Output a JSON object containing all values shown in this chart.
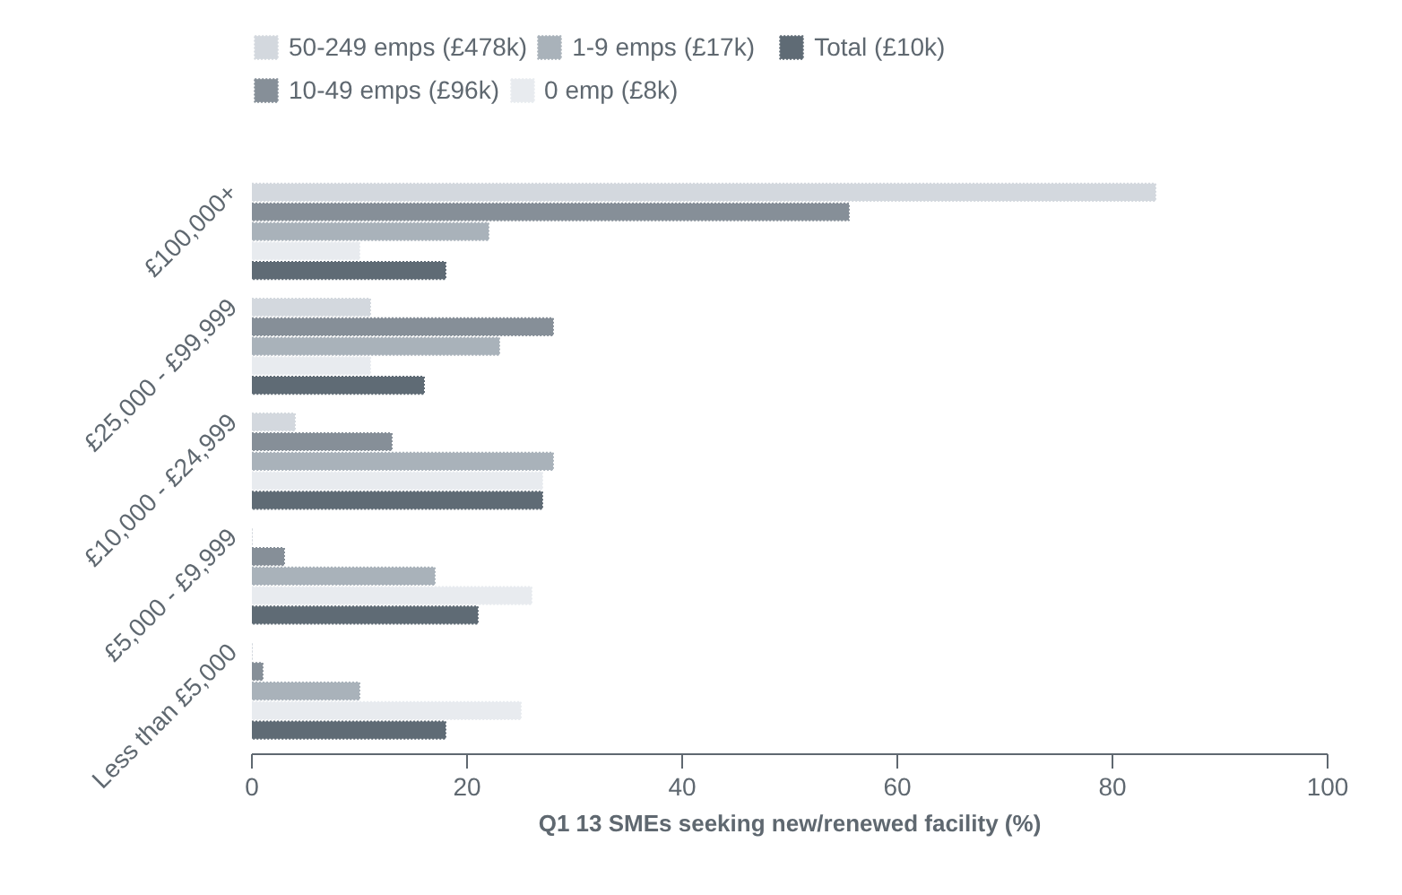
{
  "chart_data": {
    "type": "bar",
    "orientation": "horizontal",
    "xlabel": "Q1 13 SMEs seeking new/renewed facility (%)",
    "categories": [
      "£100,000+",
      "£25,000 - £99,999",
      "£10,000 - £24,999",
      "£5,000 - £9,999",
      "Less than £5,000"
    ],
    "series": [
      {
        "name": "50-249 emps (£478k)",
        "color": "#d3d8de",
        "values": [
          84,
          11,
          4,
          0,
          0
        ]
      },
      {
        "name": "10-49 emps (£96k)",
        "color": "#868f98",
        "values": [
          55.5,
          28,
          13,
          3,
          1
        ]
      },
      {
        "name": "1-9 emps (£17k)",
        "color": "#a9b2ba",
        "values": [
          22,
          23,
          28,
          17,
          10
        ]
      },
      {
        "name": "0 emp (£8k)",
        "color": "#e8ebef",
        "values": [
          10,
          11,
          27,
          26,
          25
        ]
      },
      {
        "name": "Total (£10k)",
        "color": "#5f6b75",
        "values": [
          18,
          16,
          27,
          21,
          18
        ]
      }
    ],
    "xlim": [
      0,
      100
    ],
    "xticks": [
      0,
      20,
      40,
      60,
      80,
      100
    ],
    "grid": false,
    "legend": "top"
  }
}
